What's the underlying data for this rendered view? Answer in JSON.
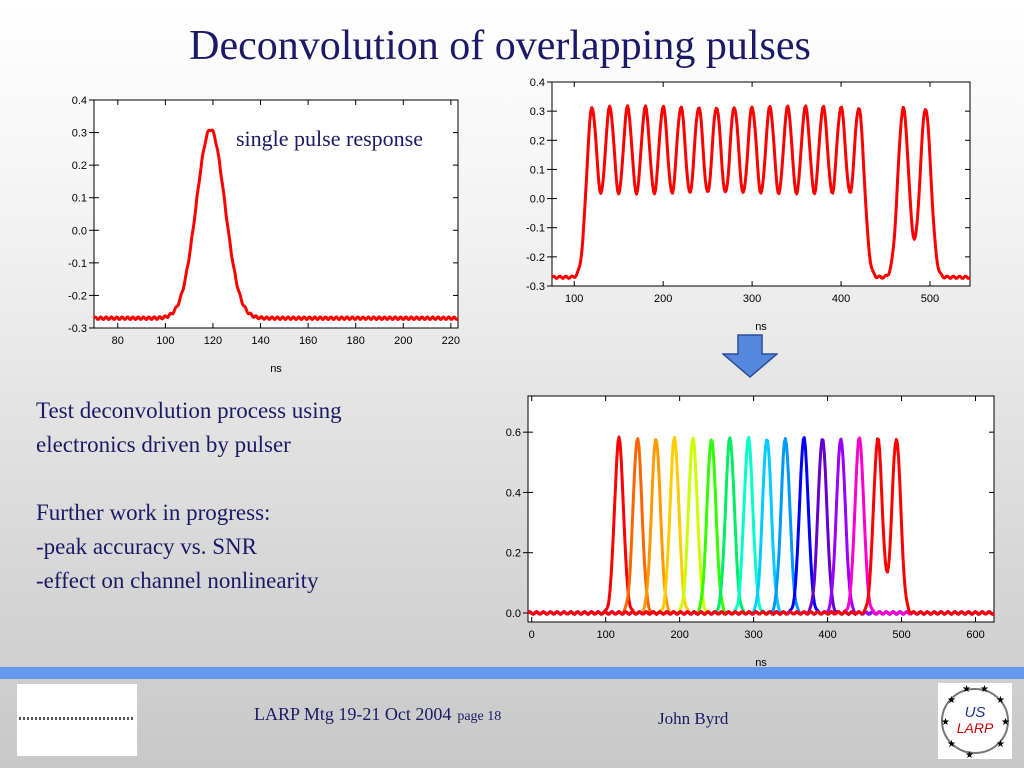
{
  "slide": {
    "title": "Deconvolution of overlapping pulses",
    "annotation": "single pulse response",
    "body_lines": [
      "Test deconvolution process using",
      "electronics driven by pulser",
      "",
      "Further work in progress:",
      "-peak accuracy vs. SNR",
      "-effect on channel nonlinearity"
    ],
    "footer": {
      "meeting": "LARP Mtg 19-21 Oct 2004",
      "page": "page 18",
      "author": "John Byrd",
      "logo_text": [
        "US",
        "LARP"
      ]
    },
    "colors": {
      "title": "#1a1a66",
      "footer_bar": "#6699ee",
      "trace": "#ff0000",
      "arrow": "#5588dd"
    }
  },
  "chart_data": [
    {
      "type": "line",
      "xlabel": "ns",
      "ylabel": "",
      "xlim": [
        70,
        223
      ],
      "ylim": [
        -0.3,
        0.4
      ],
      "xticks": [
        80,
        100,
        120,
        140,
        160,
        180,
        200,
        220
      ],
      "yticks": [
        -0.3,
        -0.2,
        -0.1,
        0.0,
        0.1,
        0.2,
        0.3,
        0.4
      ],
      "series": [
        {
          "color": "#ff0000",
          "baseline": -0.27,
          "amplitude": 0.58,
          "peaks": [
            119
          ],
          "width": 6
        }
      ]
    },
    {
      "type": "line",
      "xlabel": "ns",
      "ylabel": "",
      "xlim": [
        75,
        545
      ],
      "ylim": [
        -0.3,
        0.4
      ],
      "xticks": [
        100,
        200,
        300,
        400,
        500
      ],
      "yticks": [
        -0.3,
        -0.2,
        -0.1,
        0.0,
        0.1,
        0.2,
        0.3,
        0.4
      ],
      "series": [
        {
          "color": "#ff0000",
          "baseline": -0.27,
          "amplitude": 0.58,
          "peaks": [
            120,
            140,
            160,
            180,
            200,
            220,
            240,
            260,
            280,
            300,
            320,
            340,
            360,
            380,
            400,
            420,
            470,
            495
          ],
          "width": 6
        }
      ]
    },
    {
      "type": "line",
      "xlabel": "ns",
      "ylabel": "",
      "xlim": [
        -5,
        625
      ],
      "ylim": [
        -0.03,
        0.72
      ],
      "xticks": [
        0,
        100,
        200,
        300,
        400,
        500,
        600
      ],
      "yticks": [
        0.0,
        0.2,
        0.4,
        0.6
      ],
      "series": [
        {
          "color": "#ff0000",
          "baseline": 0,
          "amplitude": 0.58,
          "peaks": [
            118
          ],
          "width": 6
        },
        {
          "color": "#ff6600",
          "baseline": 0,
          "amplitude": 0.58,
          "peaks": [
            143
          ],
          "width": 6
        },
        {
          "color": "#ff9900",
          "baseline": 0,
          "amplitude": 0.58,
          "peaks": [
            168
          ],
          "width": 6
        },
        {
          "color": "#ffcc00",
          "baseline": 0,
          "amplitude": 0.58,
          "peaks": [
            193
          ],
          "width": 6
        },
        {
          "color": "#ccff00",
          "baseline": 0,
          "amplitude": 0.58,
          "peaks": [
            218
          ],
          "width": 6
        },
        {
          "color": "#33ff00",
          "baseline": 0,
          "amplitude": 0.58,
          "peaks": [
            243
          ],
          "width": 6
        },
        {
          "color": "#00ee66",
          "baseline": 0,
          "amplitude": 0.58,
          "peaks": [
            268
          ],
          "width": 6
        },
        {
          "color": "#00ffcc",
          "baseline": 0,
          "amplitude": 0.58,
          "peaks": [
            293
          ],
          "width": 6
        },
        {
          "color": "#00ccff",
          "baseline": 0,
          "amplitude": 0.58,
          "peaks": [
            318
          ],
          "width": 6
        },
        {
          "color": "#0099ff",
          "baseline": 0,
          "amplitude": 0.58,
          "peaks": [
            343
          ],
          "width": 6
        },
        {
          "color": "#0000ff",
          "baseline": 0,
          "amplitude": 0.58,
          "peaks": [
            368
          ],
          "width": 6
        },
        {
          "color": "#6600cc",
          "baseline": 0,
          "amplitude": 0.58,
          "peaks": [
            393
          ],
          "width": 6
        },
        {
          "color": "#9900ff",
          "baseline": 0,
          "amplitude": 0.58,
          "peaks": [
            418
          ],
          "width": 6
        },
        {
          "color": "#ff00cc",
          "baseline": 0,
          "amplitude": 0.58,
          "peaks": [
            443
          ],
          "width": 6
        },
        {
          "color": "#ff0000",
          "baseline": 0,
          "amplitude": 0.58,
          "peaks": [
            468,
            493
          ],
          "width": 6
        }
      ]
    }
  ]
}
